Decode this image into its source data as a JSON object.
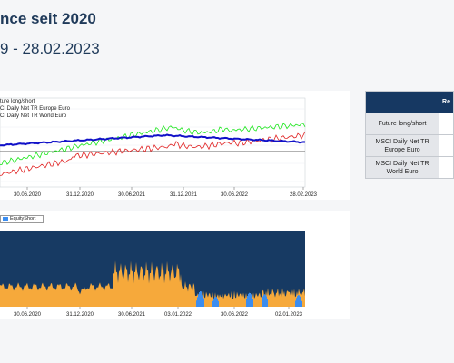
{
  "header": {
    "title": "nce seit 2020",
    "subtitle": "9 - 28.02.2023"
  },
  "chart1": {
    "legend": [
      "ture long/short",
      "CI Daily Net TR Europe Euro",
      "CI Daily Net TR World Euro"
    ],
    "xticks": [
      "30.06.2020",
      "31.12.2020",
      "30.06.2021",
      "31.12.2021",
      "30.06.2022",
      "28.02.2023"
    ]
  },
  "chart2": {
    "legend": "EquityShort",
    "xticks": [
      "30.06.2020",
      "31.12.2020",
      "30.06.2021",
      "03.01.2022",
      "30.06.2022",
      "02.01.2023"
    ]
  },
  "results_table": {
    "header_partial": "Re",
    "rows": [
      "Future long/short",
      "MSCI Daily Net TR Europe Euro",
      "MSCI Daily Net TR World Euro"
    ]
  },
  "colors": {
    "green_series": "#19e619",
    "red_series": "#e02020",
    "blue_series": "#1010c8",
    "exposure_fill": "#f6a93b",
    "exposure_bg": "#173a63",
    "short_fill": "#3b8df0",
    "table_header": "#163862"
  }
}
